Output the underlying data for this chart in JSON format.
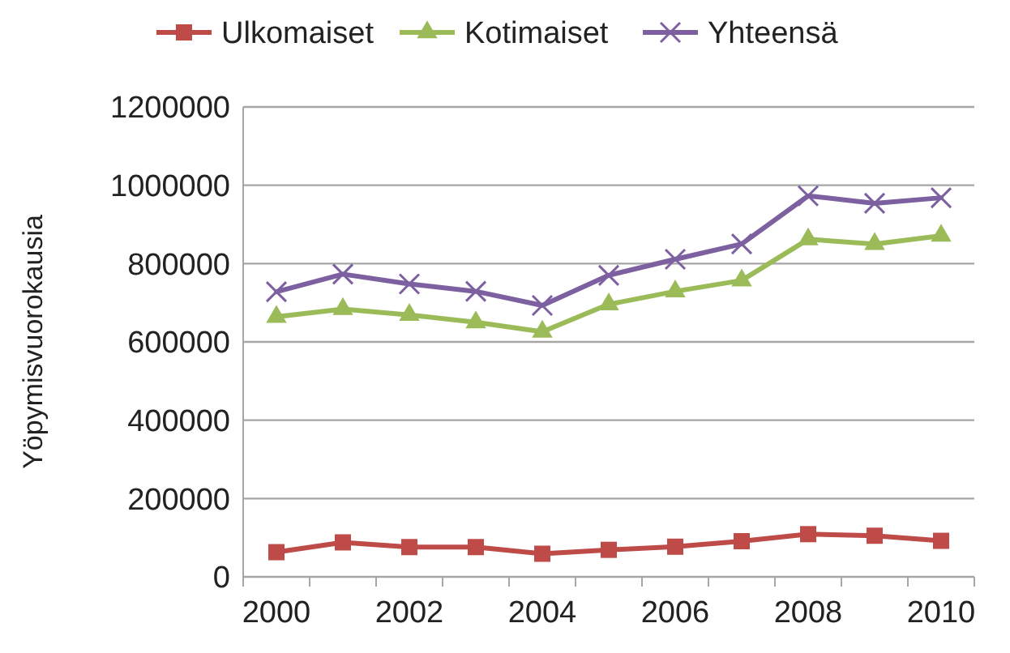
{
  "chart_data": {
    "type": "line",
    "ylabel": "Yöpymisvuorokausia",
    "categories": [
      "2000",
      null,
      "2002",
      null,
      "2004",
      null,
      "2006",
      null,
      "2008",
      null,
      "2010"
    ],
    "series": [
      {
        "name": "Ulkomaiset",
        "color": "#be4b48",
        "marker": "square",
        "values": [
          63000,
          88000,
          76000,
          76000,
          59000,
          69000,
          77000,
          91000,
          109000,
          105000,
          92000
        ]
      },
      {
        "name": "Kotimaiset",
        "color": "#9bbb59",
        "marker": "triangle",
        "values": [
          664000,
          684000,
          669000,
          650000,
          626000,
          696000,
          729000,
          757000,
          862000,
          850000,
          871000
        ]
      },
      {
        "name": "Yhteensä",
        "color": "#7d60a0",
        "marker": "cross",
        "values": [
          728000,
          773000,
          748000,
          729000,
          693000,
          770000,
          811000,
          850000,
          973000,
          954000,
          968000
        ]
      }
    ],
    "ylim": [
      0,
      1200000
    ],
    "yticks": [
      0,
      200000,
      400000,
      600000,
      800000,
      1000000,
      1200000
    ],
    "grid": "y",
    "legend": "top"
  }
}
